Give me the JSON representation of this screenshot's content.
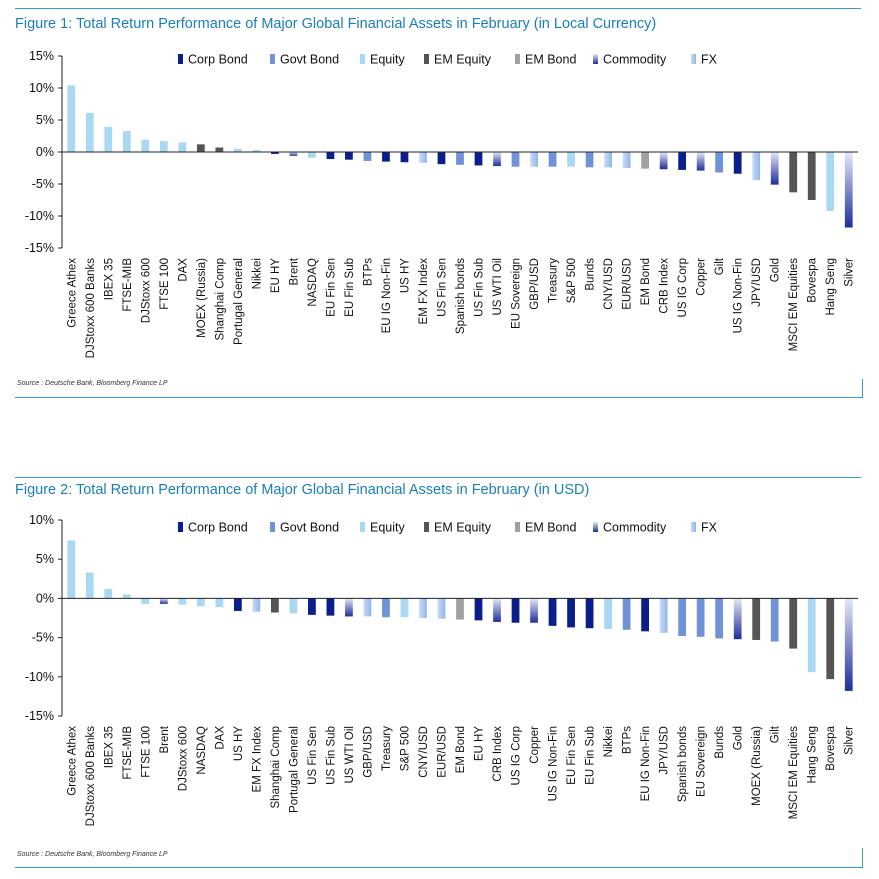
{
  "legend_colors": {
    "Corp Bond": "#0b1f8c",
    "Govt Bond": "#6f93d6",
    "Equity": "#a8d8f2",
    "EM Equity": "#555555",
    "EM Bond": "#a0a0a0",
    "Commodity": "#1e2f9a",
    "FX": "#8fb6e8"
  },
  "chart_data": [
    {
      "type": "bar",
      "title": "Figure 1: Total Return Performance of Major Global Financial Assets in February (in Local Currency)",
      "source": "Source : Deutsche Bank, Bloomberg Finance LP",
      "ylim": [
        -15,
        15
      ],
      "yticks": [
        15,
        10,
        5,
        0,
        -5,
        -10,
        -15
      ],
      "ytick_labels": [
        "15%",
        "10%",
        "5%",
        "0%",
        "-5%",
        "-10%",
        "-15%"
      ],
      "legend": [
        "Corp Bond",
        "Govt Bond",
        "Equity",
        "EM Equity",
        "EM Bond",
        "Commodity",
        "FX"
      ],
      "legend_placement": "top",
      "grid": false,
      "categories": [
        "Greece Athex",
        "DJStoxx 600 Banks",
        "IBEX 35",
        "FTSE-MIB",
        "DJStoxx 600",
        "FTSE 100",
        "DAX",
        "MOEX (Russia)",
        "Shanghai Comp",
        "Portugal General",
        "Nikkei",
        "EU HY",
        "Brent",
        "NASDAQ",
        "EU Fin Sen",
        "EU Fin Sub",
        "BTPs",
        "EU IG Non-Fin",
        "US HY",
        "EM FX Index",
        "US Fin Sen",
        "Spanish bonds",
        "US Fin Sub",
        "US WTI Oil",
        "EU Sovereign",
        "GBP/USD",
        "Treasury",
        "S&P 500",
        "Bunds",
        "CNY/USD",
        "EUR/USD",
        "EM Bond",
        "CRB Index",
        "US IG Corp",
        "Copper",
        "Gilt",
        "US IG Non-Fin",
        "JPY/USD",
        "Gold",
        "MSCI EM Equities",
        "Bovespa",
        "Hang Seng",
        "Silver"
      ],
      "values": [
        10.4,
        6.1,
        3.9,
        3.3,
        1.9,
        1.7,
        1.5,
        1.2,
        0.7,
        0.5,
        0.3,
        -0.3,
        -0.6,
        -0.9,
        -1.1,
        -1.2,
        -1.4,
        -1.5,
        -1.6,
        -1.7,
        -1.9,
        -2.0,
        -2.1,
        -2.2,
        -2.3,
        -2.3,
        -2.3,
        -2.3,
        -2.4,
        -2.4,
        -2.5,
        -2.6,
        -2.7,
        -2.8,
        -2.9,
        -3.2,
        -3.4,
        -4.4,
        -5.1,
        -6.3,
        -7.5,
        -9.2,
        -11.8
      ],
      "classes": [
        "Equity",
        "Equity",
        "Equity",
        "Equity",
        "Equity",
        "Equity",
        "Equity",
        "EM Equity",
        "EM Equity",
        "Equity",
        "Equity",
        "Corp Bond",
        "Commodity",
        "Equity",
        "Corp Bond",
        "Corp Bond",
        "Govt Bond",
        "Corp Bond",
        "Corp Bond",
        "FX",
        "Corp Bond",
        "Govt Bond",
        "Corp Bond",
        "Commodity",
        "Govt Bond",
        "FX",
        "Govt Bond",
        "Equity",
        "Govt Bond",
        "FX",
        "FX",
        "EM Bond",
        "Commodity",
        "Corp Bond",
        "Commodity",
        "Govt Bond",
        "Corp Bond",
        "FX",
        "Commodity",
        "EM Equity",
        "EM Equity",
        "Equity",
        "Commodity"
      ]
    },
    {
      "type": "bar",
      "title": "Figure 2: Total Return Performance of Major Global Financial Assets in February (in USD)",
      "source": "Source : Deutsche Bank, Bloomberg Finance LP",
      "ylim": [
        -15,
        10
      ],
      "yticks": [
        10,
        5,
        0,
        -5,
        -10,
        -15
      ],
      "ytick_labels": [
        "10%",
        "5%",
        "0%",
        "-5%",
        "-10%",
        "-15%"
      ],
      "legend": [
        "Corp Bond",
        "Govt Bond",
        "Equity",
        "EM Equity",
        "EM Bond",
        "Commodity",
        "FX"
      ],
      "legend_placement": "top",
      "grid": false,
      "categories": [
        "Greece Athex",
        "DJStoxx 600 Banks",
        "IBEX 35",
        "FTSE-MIB",
        "FTSE 100",
        "Brent",
        "DJStoxx 600",
        "NASDAQ",
        "DAX",
        "US HY",
        "EM FX Index",
        "Shanghai Comp",
        "Portugal General",
        "US Fin Sen",
        "US Fin Sub",
        "US WTI Oil",
        "GBP/USD",
        "Treasury",
        "S&P 500",
        "CNY/USD",
        "EUR/USD",
        "EM Bond",
        "EU HY",
        "CRB Index",
        "US IG Corp",
        "Copper",
        "US IG Non-Fin",
        "EU Fin Sen",
        "EU Fin Sub",
        "Nikkei",
        "BTPs",
        "EU IG Non-Fin",
        "JPY/USD",
        "Spanish bonds",
        "EU Sovereign",
        "Bunds",
        "Gold",
        "MOEX (Russia)",
        "Gilt",
        "MSCI EM Equities",
        "Hang Seng",
        "Bovespa",
        "Silver"
      ],
      "values": [
        7.4,
        3.3,
        1.2,
        0.5,
        -0.7,
        -0.7,
        -0.8,
        -1.0,
        -1.1,
        -1.6,
        -1.7,
        -1.8,
        -1.9,
        -2.1,
        -2.2,
        -2.3,
        -2.3,
        -2.4,
        -2.4,
        -2.5,
        -2.6,
        -2.7,
        -2.8,
        -3.0,
        -3.1,
        -3.1,
        -3.5,
        -3.7,
        -3.8,
        -3.9,
        -4.0,
        -4.2,
        -4.4,
        -4.8,
        -4.9,
        -5.1,
        -5.2,
        -5.3,
        -5.5,
        -6.4,
        -9.4,
        -10.3,
        -11.8
      ],
      "classes": [
        "Equity",
        "Equity",
        "Equity",
        "Equity",
        "Equity",
        "Commodity",
        "Equity",
        "Equity",
        "Equity",
        "Corp Bond",
        "FX",
        "EM Equity",
        "Equity",
        "Corp Bond",
        "Corp Bond",
        "Commodity",
        "FX",
        "Govt Bond",
        "Equity",
        "FX",
        "FX",
        "EM Bond",
        "Corp Bond",
        "Commodity",
        "Corp Bond",
        "Commodity",
        "Corp Bond",
        "Corp Bond",
        "Corp Bond",
        "Equity",
        "Govt Bond",
        "Corp Bond",
        "FX",
        "Govt Bond",
        "Govt Bond",
        "Govt Bond",
        "Commodity",
        "EM Equity",
        "Govt Bond",
        "EM Equity",
        "Equity",
        "EM Equity",
        "Commodity"
      ]
    }
  ]
}
